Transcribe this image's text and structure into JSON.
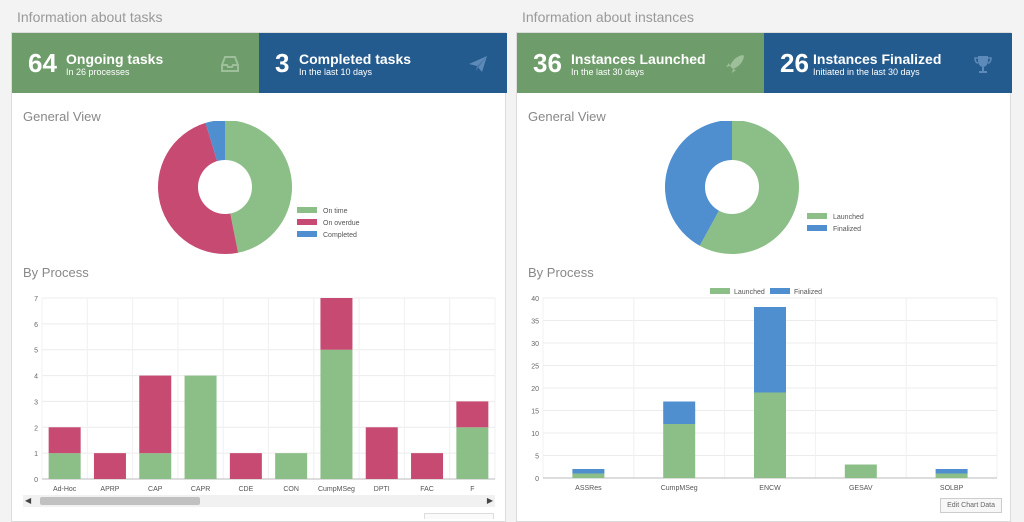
{
  "tasks": {
    "section_title": "Information about tasks",
    "ongoing": {
      "count": "64",
      "title": "Ongoing tasks",
      "subtitle": "In 26 processes",
      "icon": "inbox-icon"
    },
    "completed": {
      "count": "3",
      "title": "Completed tasks",
      "subtitle": "In the last 10 days",
      "icon": "paper-plane-icon"
    },
    "general_view_title": "General View",
    "by_process_title": "By Process"
  },
  "instances": {
    "section_title": "Information about instances",
    "launched": {
      "count": "36",
      "title": "Instances Launched",
      "subtitle": "In the last 30 days",
      "icon": "rocket-icon"
    },
    "finalized": {
      "count": "26",
      "title": "Instances Finalized",
      "subtitle": "Initiated in the last 30 days",
      "icon": "trophy-icon"
    },
    "general_view_title": "General View",
    "by_process_title": "By Process",
    "edit_chart_label": "Edit Chart Data"
  },
  "colors": {
    "green": "#6e9c6a",
    "blue": "#235b8f",
    "chart_green": "#8cbf88",
    "chart_red": "#c64a72",
    "chart_blue": "#4f8fd0"
  },
  "chart_data": [
    {
      "type": "pie",
      "categories": [
        "On time",
        "On overdue",
        "Completed"
      ],
      "values": [
        30,
        31,
        3
      ],
      "colors": [
        "#8cbf88",
        "#c64a72",
        "#4f8fd0"
      ],
      "legend": "right",
      "donut": true
    },
    {
      "type": "bar",
      "stacked": true,
      "categories": [
        "Ad-Hoc",
        "APRP",
        "CAP",
        "CAPR",
        "CDE",
        "CON",
        "CumpMSeg",
        "DPTI",
        "FAC",
        "F"
      ],
      "series": [
        {
          "values": [
            1,
            0,
            1,
            4,
            0,
            1,
            5,
            0,
            0,
            2
          ],
          "color": "#8cbf88"
        },
        {
          "values": [
            1,
            1,
            3,
            0,
            1,
            0,
            2,
            2,
            1,
            1
          ],
          "color": "#c64a72"
        }
      ],
      "ylim": [
        0,
        7
      ],
      "yticks": [
        0,
        1,
        2,
        3,
        4,
        5,
        6,
        7
      ],
      "grid": true
    },
    {
      "type": "pie",
      "categories": [
        "Launched",
        "Finalized"
      ],
      "values": [
        58,
        42
      ],
      "colors": [
        "#8cbf88",
        "#4f8fd0"
      ],
      "legend": "right",
      "donut": true
    },
    {
      "type": "bar",
      "stacked": true,
      "categories": [
        "ASSRes",
        "CumpMSeg",
        "ENCW",
        "GESAV",
        "SOLBP"
      ],
      "series": [
        {
          "name": "Launched",
          "values": [
            1,
            12,
            19,
            3,
            1
          ],
          "color": "#8cbf88"
        },
        {
          "name": "Finalized",
          "values": [
            1,
            5,
            19,
            0,
            1
          ],
          "color": "#4f8fd0"
        }
      ],
      "ylim": [
        0,
        40
      ],
      "yticks": [
        0,
        5,
        10,
        15,
        20,
        25,
        30,
        35,
        40
      ],
      "legend": "top",
      "grid": true
    }
  ]
}
